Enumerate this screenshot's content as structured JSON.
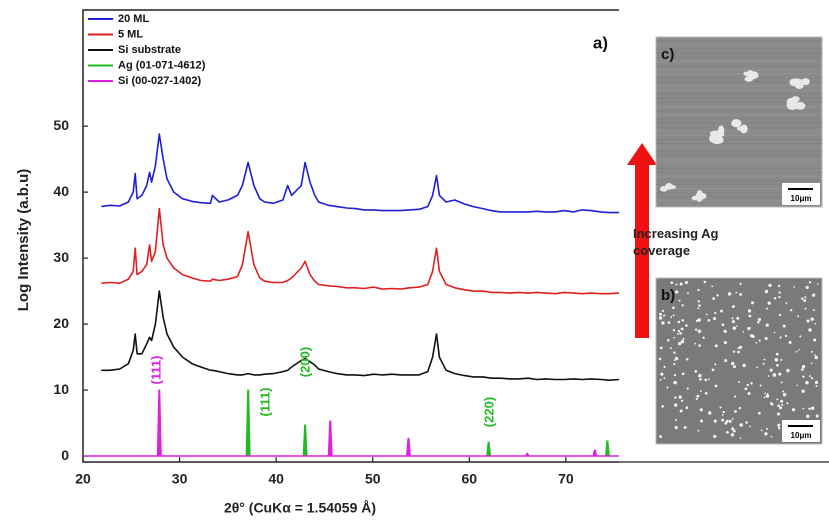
{
  "chart_data": {
    "type": "line",
    "panel_label": "a)",
    "x_label": "2θ° (CuKα = 1.54059 Å)",
    "y_label": "Log Intensity (a.b.u)",
    "xlim": [
      20,
      75.5
    ],
    "ylim": [
      -0.9,
      67.6
    ],
    "xticks": [
      20,
      30,
      40,
      50,
      60,
      70
    ],
    "yticks": [
      0,
      10,
      20,
      30,
      40,
      50
    ],
    "x": [
      21.9,
      22.8,
      23.8,
      24.7,
      25.2,
      25.4,
      25.6,
      26.1,
      26.6,
      26.9,
      27.1,
      27.5,
      27.9,
      28.3,
      28.7,
      29.4,
      30.3,
      31.3,
      32.2,
      33.2,
      33.4,
      34.1,
      35.0,
      36.0,
      36.5,
      37.1,
      37.7,
      38.3,
      38.8,
      39.7,
      40.7,
      41.2,
      41.6,
      42.6,
      43.0,
      43.5,
      44.0,
      44.4,
      45.4,
      46.3,
      47.3,
      48.2,
      49.1,
      50.1,
      51.0,
      52.0,
      52.9,
      53.8,
      54.8,
      55.7,
      56.2,
      56.6,
      56.9,
      57.6,
      58.5,
      59.5,
      60.4,
      61.4,
      62.3,
      63.2,
      64.2,
      65.1,
      66.1,
      67.0,
      67.9,
      68.9,
      69.8,
      70.8,
      71.7,
      72.6,
      73.6,
      74.5,
      75.5
    ],
    "series": [
      {
        "name": "20 ML",
        "color": "#1f1fd6",
        "values": [
          37.8,
          38,
          37.9,
          38.5,
          40,
          42.8,
          39,
          39.5,
          41,
          43,
          41.5,
          44,
          48.8,
          45,
          42,
          40,
          39,
          38.6,
          38.4,
          38.3,
          39.5,
          38.5,
          38.8,
          39.5,
          41,
          44.5,
          41,
          39,
          38.5,
          38.3,
          38.8,
          41,
          39.5,
          41,
          44.5,
          41.5,
          39.5,
          38.5,
          38,
          37.8,
          37.6,
          37.5,
          37.3,
          37.3,
          37.2,
          37.2,
          37.2,
          37.3,
          37.4,
          37.8,
          39.5,
          42.5,
          39.5,
          38.5,
          38.8,
          38.2,
          37.8,
          37.5,
          37.2,
          37,
          37,
          37,
          37,
          37.1,
          37,
          37,
          37.2,
          37,
          37.3,
          37.2,
          37,
          36.9,
          36.9
        ]
      },
      {
        "name": "5 ML",
        "color": "#e02020",
        "values": [
          26.2,
          26.3,
          26.2,
          26.8,
          28,
          31.5,
          27.5,
          28,
          29,
          32,
          29.5,
          31,
          37.5,
          32,
          30,
          28.5,
          27.5,
          27,
          26.6,
          26.5,
          26.8,
          26.6,
          26.8,
          27.2,
          29,
          34,
          29,
          27,
          26.5,
          26.3,
          26.3,
          26.6,
          27,
          28.5,
          29.5,
          27.5,
          26.5,
          26,
          25.8,
          25.7,
          25.5,
          25.5,
          25.4,
          25.6,
          25.3,
          25.4,
          25.3,
          25.5,
          25.6,
          26,
          28,
          31.5,
          28,
          26,
          25.5,
          25.2,
          25,
          25,
          24.8,
          24.8,
          24.7,
          24.8,
          24.7,
          24.8,
          24.7,
          24.6,
          24.8,
          24.7,
          24.6,
          24.7,
          24.6,
          24.6,
          24.7
        ]
      },
      {
        "name": "Si substrate",
        "color": "#111111",
        "values": [
          13,
          13,
          13.2,
          14,
          16,
          18.5,
          15.5,
          15.5,
          17,
          18,
          17.5,
          20,
          25,
          21,
          18.5,
          16.5,
          15,
          14,
          13.5,
          13,
          13,
          12.8,
          12.5,
          12.3,
          12.3,
          12.5,
          12.3,
          12.3,
          12.4,
          12.5,
          12.8,
          13,
          13.5,
          14.5,
          14.8,
          14.3,
          13.8,
          13.2,
          12.8,
          12.5,
          12.3,
          12.3,
          12.2,
          12.4,
          12.3,
          12.4,
          12.3,
          12.3,
          12.3,
          12.8,
          15,
          18.5,
          15,
          13,
          12.5,
          12.2,
          12,
          12,
          11.8,
          11.8,
          11.7,
          11.7,
          11.8,
          11.6,
          11.7,
          11.6,
          11.6,
          11.7,
          11.6,
          11.7,
          11.6,
          11.5,
          11.6
        ]
      }
    ],
    "reference_patterns": [
      {
        "name": "Ag (01-071-4612)",
        "color": "#22bb22",
        "x": [
          37.1,
          43.0,
          62.0,
          74.3
        ],
        "values": [
          10,
          4.7,
          2.1,
          2.3
        ]
      },
      {
        "name": "Si (00-027-1402)",
        "color": "#e020e0",
        "x": [
          27.9,
          45.6,
          53.7,
          66.0,
          73.0
        ],
        "values": [
          10,
          5.3,
          2.7,
          0.4,
          0.9
        ]
      }
    ],
    "annotations": [
      {
        "text": "(111)",
        "color": "#e020e0"
      },
      {
        "text": "(111)",
        "color": "#22bb22"
      },
      {
        "text": "(200)",
        "color": "#22bb22"
      },
      {
        "text": "(220)",
        "color": "#22bb22"
      }
    ],
    "insets": [
      {
        "label": "c)",
        "scale_bar": "10μm"
      },
      {
        "label": "b)",
        "scale_bar": "10μm"
      }
    ],
    "arrow_label": "Increasing Ag coverage"
  }
}
